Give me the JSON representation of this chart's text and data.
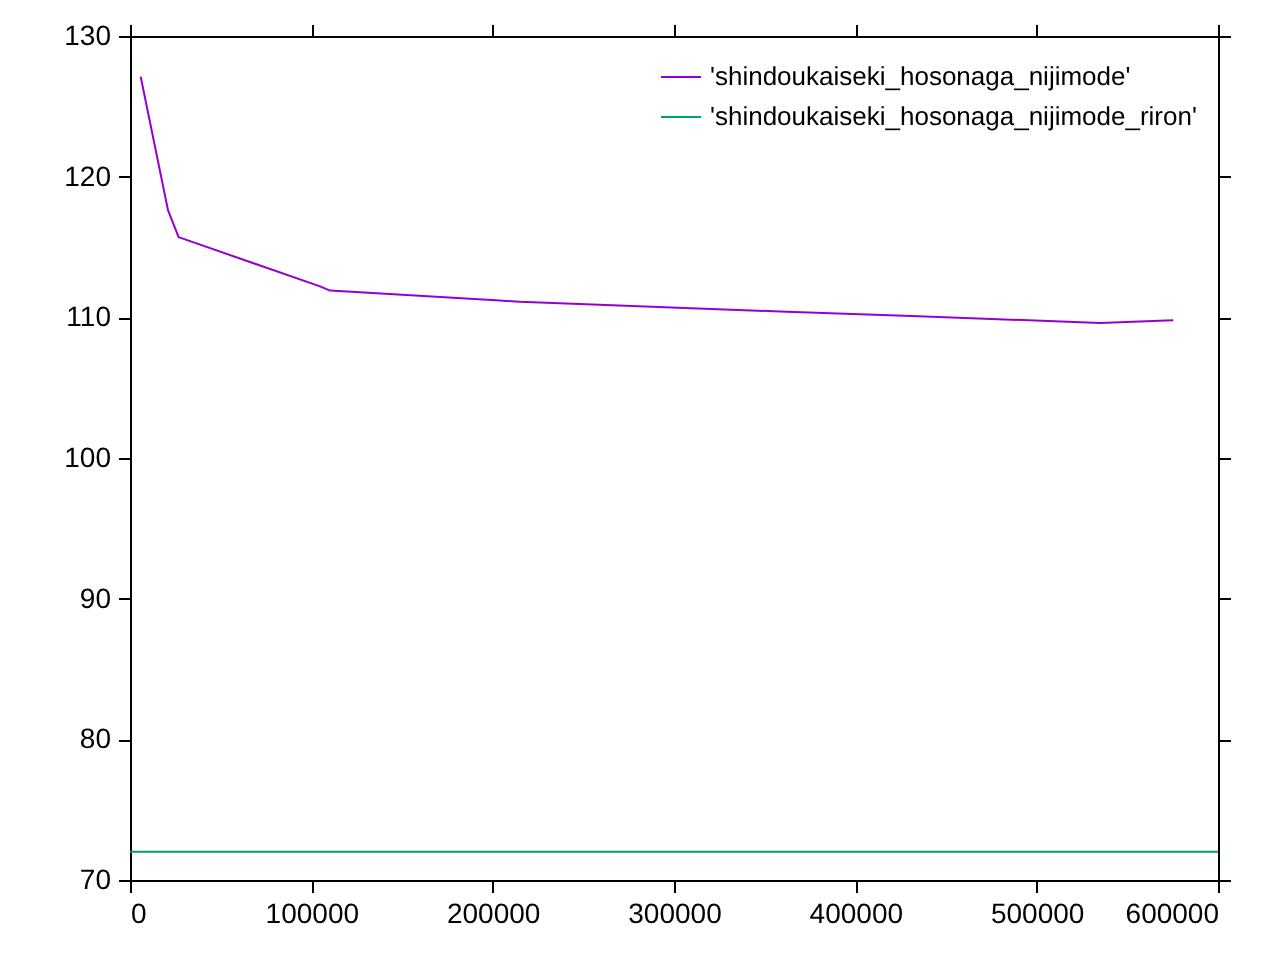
{
  "chart_data": {
    "type": "line",
    "xlim": [
      0,
      600000
    ],
    "xticks": [
      0,
      100000,
      200000,
      300000,
      400000,
      500000,
      600000
    ],
    "ylim": [
      70,
      130
    ],
    "yticks": [
      70,
      80,
      90,
      100,
      110,
      120,
      130
    ],
    "legend": "top right",
    "grid": false,
    "marker": "none",
    "line_style": "solid",
    "series": [
      {
        "name": "'shindoukaiseki_hosonaga_nijimode'",
        "color": "#9400d3",
        "x": [
          5900,
          21000,
          26800,
          104800,
          110300,
          204000,
          215000,
          362000,
          431000,
          535000,
          575300
        ],
        "values": [
          127.1,
          117.6,
          115.7,
          112.2,
          111.9,
          111.2,
          111.1,
          110.4,
          110.1,
          109.6,
          109.8
        ]
      },
      {
        "name": "'shindoukaiseki_hosonaga_nijimode_riron'",
        "color": "#009e73",
        "x": [
          0,
          600000
        ],
        "values": [
          72.0,
          72.0
        ]
      }
    ]
  }
}
